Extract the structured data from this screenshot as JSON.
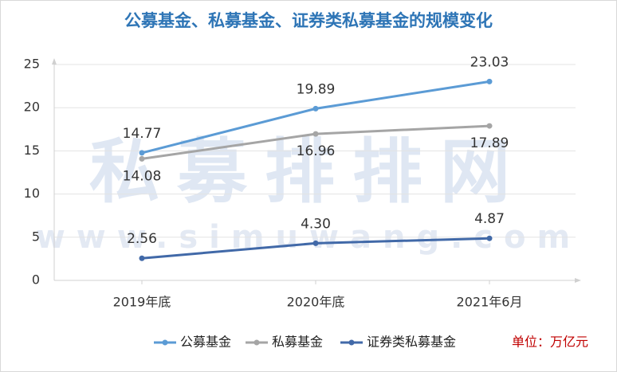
{
  "chart_data": {
    "type": "line",
    "title": "公募基金、私募基金、证券类私募基金的规模变化",
    "categories": [
      "2019年底",
      "2020年底",
      "2021年6月"
    ],
    "series": [
      {
        "name": "公募基金",
        "color": "#5b9bd5",
        "values": [
          14.77,
          19.89,
          23.03
        ]
      },
      {
        "name": "私募基金",
        "color": "#a5a5a5",
        "values": [
          14.08,
          16.96,
          17.89
        ]
      },
      {
        "name": "证券类私募基金",
        "color": "#4169a8",
        "values": [
          2.56,
          4.3,
          4.87
        ],
        "value_labels": [
          "2.56",
          "4.30",
          "4.87"
        ]
      }
    ],
    "ylim": [
      0,
      25
    ],
    "yticks": [
      0,
      5,
      10,
      15,
      20,
      25
    ],
    "grid": true,
    "unit_note": "单位：万亿元",
    "watermark": [
      "私募排排网",
      "www.simuwang.com"
    ]
  }
}
